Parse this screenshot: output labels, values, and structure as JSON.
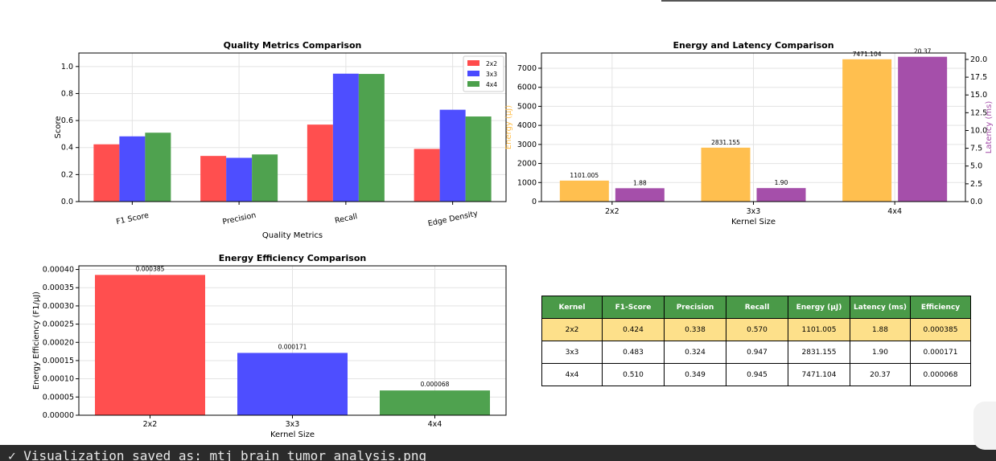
{
  "colors": {
    "k2x2": "#ff4b4b",
    "k3x3": "#4a4aff",
    "k4x4": "#4ba04b",
    "energy": "#ffbe4b",
    "latency": "#a34ba8",
    "table_header": "#4a9a48",
    "table_highlight": "#fde08a"
  },
  "chart_data": [
    {
      "type": "bar",
      "title": "Quality Metrics Comparison",
      "xlabel": "Quality Metrics",
      "ylabel": "Score",
      "ylim": [
        0,
        1.1
      ],
      "yticks": [
        "0.0",
        "0.2",
        "0.4",
        "0.6",
        "0.8",
        "1.0"
      ],
      "categories": [
        "F1 Score",
        "Precision",
        "Recall",
        "Edge Density"
      ],
      "series": [
        {
          "name": "2x2",
          "values": [
            0.424,
            0.338,
            0.57,
            0.39
          ]
        },
        {
          "name": "3x3",
          "values": [
            0.483,
            0.324,
            0.947,
            0.68
          ]
        },
        {
          "name": "4x4",
          "values": [
            0.51,
            0.349,
            0.945,
            0.63
          ]
        }
      ],
      "grid": true,
      "legend": "top-right"
    },
    {
      "type": "bar",
      "title": "Energy and Latency Comparison",
      "xlabel": "Kernel Size",
      "ylabel": "Energy (μJ)",
      "ylabel_right": "Latency (ms)",
      "ylim": [
        0,
        7800
      ],
      "ylim_right": [
        0,
        20.9
      ],
      "yticks": [
        "0",
        "1000",
        "2000",
        "3000",
        "4000",
        "5000",
        "6000",
        "7000"
      ],
      "yticks_right": [
        "0.0",
        "2.5",
        "5.0",
        "7.5",
        "10.0",
        "12.5",
        "15.0",
        "17.5",
        "20.0"
      ],
      "categories": [
        "2x2",
        "3x3",
        "4x4"
      ],
      "series": [
        {
          "axis": "left",
          "values": [
            1101.005,
            2831.155,
            7471.104
          ],
          "labels": [
            "1101.005",
            "2831.155",
            "7471.104"
          ]
        },
        {
          "axis": "right",
          "values": [
            1.88,
            1.9,
            20.37
          ],
          "labels": [
            "1.88",
            "1.90",
            "20.37"
          ]
        }
      ],
      "grid": true
    },
    {
      "type": "bar",
      "title": "Energy Efficiency Comparison",
      "xlabel": "Kernel Size",
      "ylabel": "Energy Efficiency (F1/μJ)",
      "ylim": [
        0,
        0.00041
      ],
      "yticks": [
        "0.00000",
        "0.00005",
        "0.00010",
        "0.00015",
        "0.00020",
        "0.00025",
        "0.00030",
        "0.00035",
        "0.00040"
      ],
      "categories": [
        "2x2",
        "3x3",
        "4x4"
      ],
      "values": [
        0.000385,
        0.000171,
        6.8e-05
      ],
      "labels": [
        "0.000385",
        "0.000171",
        "0.000068"
      ],
      "grid": true
    },
    {
      "type": "table",
      "columns": [
        "Kernel",
        "F1-Score",
        "Precision",
        "Recall",
        "Energy (μJ)",
        "Latency (ms)",
        "Efficiency"
      ],
      "rows": [
        [
          "2x2",
          "0.424",
          "0.338",
          "0.570",
          "1101.005",
          "1.88",
          "0.000385"
        ],
        [
          "3x3",
          "0.483",
          "0.324",
          "0.947",
          "2831.155",
          "1.90",
          "0.000171"
        ],
        [
          "4x4",
          "0.510",
          "0.349",
          "0.945",
          "7471.104",
          "20.37",
          "0.000068"
        ]
      ],
      "highlight_row": 0
    }
  ],
  "console": {
    "text": "✓ Visualization saved as: mtj_brain_tumor_analysis.png"
  }
}
